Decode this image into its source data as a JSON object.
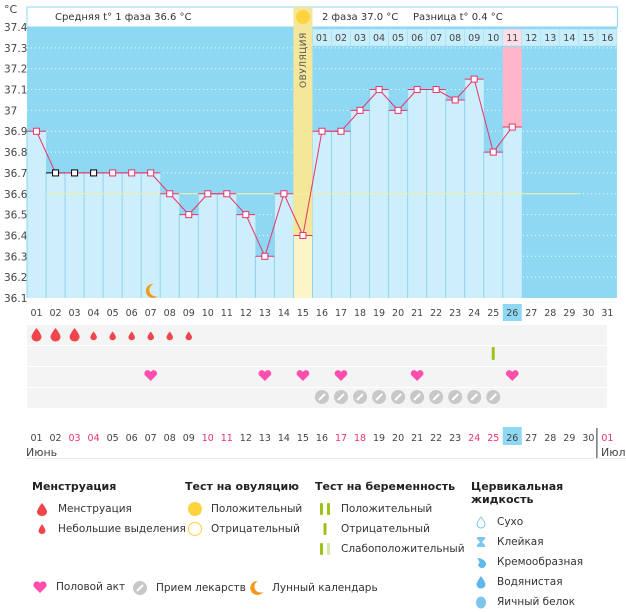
{
  "header": {
    "unit_label": "°C",
    "phase1_text": "Средняя t° 1 фаза",
    "phase1_value": "36.6 °C",
    "phase2_text": "2 фаза",
    "phase2_value": "37.0 °C",
    "diff_text": "Разница t°",
    "diff_value": "0.4 °C",
    "ovulation_label": "ОВУЛЯЦИЯ"
  },
  "months": {
    "current": "Июнь",
    "next": "Июль"
  },
  "chart_data": {
    "type": "line",
    "title": "",
    "xlabel": "",
    "ylabel": "°C",
    "ylim": [
      36.1,
      37.4
    ],
    "yticks": [
      "37.4",
      "37.3",
      "37.2",
      "37.1",
      "37",
      "36.9",
      "36.8",
      "36.7",
      "36.6",
      "36.5",
      "36.4",
      "36.3",
      "36.2",
      "36.1"
    ],
    "x": [
      "01",
      "02",
      "03",
      "04",
      "05",
      "06",
      "07",
      "08",
      "09",
      "10",
      "11",
      "12",
      "13",
      "14",
      "15",
      "16",
      "17",
      "18",
      "19",
      "20",
      "21",
      "22",
      "23",
      "24",
      "25",
      "26",
      "27",
      "28",
      "29",
      "30",
      "31"
    ],
    "series": [
      {
        "name": "temperature",
        "values": [
          36.9,
          36.7,
          36.7,
          36.7,
          36.7,
          36.7,
          36.7,
          36.6,
          36.5,
          36.6,
          36.6,
          36.5,
          36.3,
          36.6,
          36.4,
          36.9,
          36.9,
          37.0,
          37.1,
          37.0,
          37.1,
          37.1,
          37.05,
          37.15,
          36.8,
          36.92,
          null,
          null,
          null,
          null,
          null
        ]
      }
    ],
    "excluded_points_days": [
      "02",
      "03",
      "04"
    ],
    "coverline": 36.6,
    "ovulation_day": "15",
    "today": "26",
    "cycle_day_labels": [
      "01",
      "02",
      "03",
      "04",
      "05",
      "06",
      "07",
      "08",
      "09",
      "10",
      "11",
      "12",
      "13",
      "14",
      "15",
      "16"
    ],
    "highlighted_cycle_day": "11",
    "bottom_dates": [
      {
        "d": "01",
        "red": false
      },
      {
        "d": "02",
        "red": false
      },
      {
        "d": "03",
        "red": true
      },
      {
        "d": "04",
        "red": true
      },
      {
        "d": "05",
        "red": false
      },
      {
        "d": "06",
        "red": false
      },
      {
        "d": "07",
        "red": false
      },
      {
        "d": "08",
        "red": false
      },
      {
        "d": "09",
        "red": false
      },
      {
        "d": "10",
        "red": true
      },
      {
        "d": "11",
        "red": true
      },
      {
        "d": "12",
        "red": false
      },
      {
        "d": "13",
        "red": false
      },
      {
        "d": "14",
        "red": false
      },
      {
        "d": "15",
        "red": false
      },
      {
        "d": "16",
        "red": false
      },
      {
        "d": "17",
        "red": true
      },
      {
        "d": "18",
        "red": true
      },
      {
        "d": "19",
        "red": false
      },
      {
        "d": "20",
        "red": false
      },
      {
        "d": "21",
        "red": false
      },
      {
        "d": "22",
        "red": false
      },
      {
        "d": "23",
        "red": false
      },
      {
        "d": "24",
        "red": true
      },
      {
        "d": "25",
        "red": true
      },
      {
        "d": "26",
        "red": false
      },
      {
        "d": "27",
        "red": false
      },
      {
        "d": "28",
        "red": false
      },
      {
        "d": "29",
        "red": false
      },
      {
        "d": "30",
        "red": false
      },
      {
        "d": "01",
        "red": true
      }
    ],
    "menstruation": {
      "heavy": [
        "01",
        "02",
        "03"
      ],
      "light": [
        "04",
        "05",
        "06",
        "07",
        "08",
        "09"
      ]
    },
    "pregnancy_test_negative": [
      "25"
    ],
    "intercourse": [
      "07",
      "13",
      "15",
      "17",
      "21",
      "26"
    ],
    "medication": [
      "16",
      "17",
      "18",
      "19",
      "20",
      "21",
      "22",
      "23",
      "24",
      "25"
    ],
    "moon": [
      "07"
    ]
  },
  "legend": {
    "menstruation": {
      "title": "Менструация",
      "items": [
        "Менструация",
        "Небольшие выделения"
      ]
    },
    "ovulation_test": {
      "title": "Тест на овуляцию",
      "items": [
        "Положительный",
        "Отрицательный"
      ]
    },
    "pregnancy_test": {
      "title": "Тест на беременность",
      "items": [
        "Положительный",
        "Отрицательный",
        "Слабоположительный"
      ]
    },
    "cervical": {
      "title": "Цервикальная жидкость",
      "items": [
        "Сухо",
        "Клейкая",
        "Кремообразная",
        "Водянистая",
        "Яичный белок"
      ]
    },
    "other": [
      "Половой акт",
      "Прием лекарств",
      "Лунный календарь"
    ]
  },
  "colors": {
    "sky": "#8fd8f3",
    "bar": "#cdeefb",
    "line": "#e8336b",
    "ovulation": "#f4e79a",
    "pink_col": "#ffb6c8",
    "today": "#8fd8f3",
    "heart": "#ff4fae",
    "drop": "#f0454b",
    "pill": "#c8c8c8",
    "test": "#9bc31a",
    "moon": "#f39a1d",
    "sun": "#fdd340"
  }
}
